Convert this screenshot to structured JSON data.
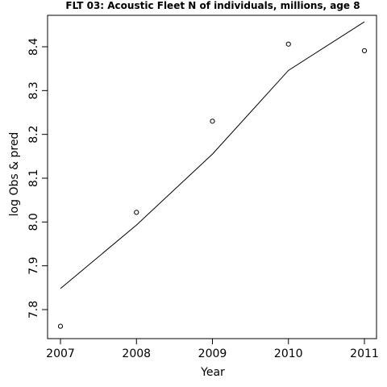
{
  "chart_data": {
    "type": "scatter",
    "title": "FLT 03: Acoustic Fleet  N of individuals, millions, age 8",
    "xlabel": "Year",
    "ylabel": "log Obs & pred",
    "xlim": [
      2007,
      2011
    ],
    "ylim": [
      7.76,
      8.46
    ],
    "x_ticks": [
      "2007",
      "2008",
      "2009",
      "2010",
      "2011"
    ],
    "y_ticks": [
      "7.8",
      "7.9",
      "8.0",
      "8.1",
      "8.2",
      "8.3",
      "8.4"
    ],
    "series": [
      {
        "kind": "points",
        "x": [
          2007,
          2008,
          2009,
          2010,
          2011
        ],
        "y": [
          7.762,
          8.022,
          8.23,
          8.406,
          8.391
        ]
      },
      {
        "kind": "line",
        "x": [
          2007,
          2008,
          2009,
          2010,
          2011
        ],
        "y": [
          7.848,
          7.993,
          8.155,
          8.346,
          8.457
        ]
      }
    ]
  }
}
